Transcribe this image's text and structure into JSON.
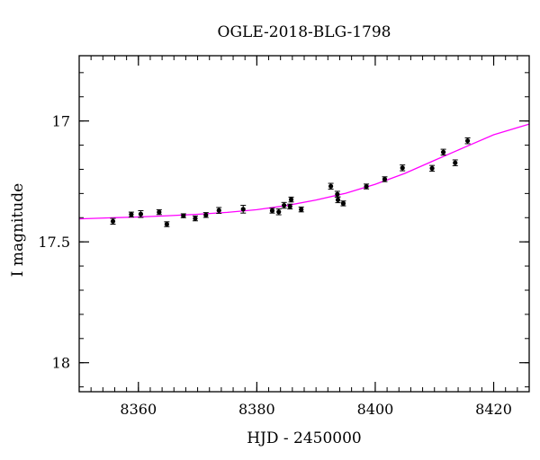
{
  "chart_data": {
    "type": "scatter",
    "title": "OGLE-2018-BLG-1798",
    "xlabel": "HJD - 2450000",
    "ylabel": "I magnitude",
    "xlim": [
      8350,
      8426
    ],
    "ylim": [
      18.12,
      16.73
    ],
    "y_inverted": true,
    "x_major_ticks": [
      8360,
      8380,
      8400,
      8420
    ],
    "x_minor_step": 2,
    "y_major_ticks": [
      17,
      17.5,
      18
    ],
    "y_minor_step": 0.1,
    "x_tick_labels": [
      "8360",
      "8380",
      "8400",
      "8420"
    ],
    "y_tick_labels": [
      "17",
      "17.5",
      "18"
    ],
    "grid": false,
    "colors": {
      "points": "#000000",
      "model": "#ff00ff",
      "axes": "#000000"
    },
    "series": [
      {
        "type": "scatter_errorbar",
        "points": [
          {
            "x": 8355.7,
            "y": 17.415,
            "err": 0.012
          },
          {
            "x": 8358.8,
            "y": 17.387,
            "err": 0.01
          },
          {
            "x": 8360.4,
            "y": 17.385,
            "err": 0.014
          },
          {
            "x": 8363.5,
            "y": 17.377,
            "err": 0.01
          },
          {
            "x": 8364.8,
            "y": 17.427,
            "err": 0.01
          },
          {
            "x": 8367.6,
            "y": 17.392,
            "err": 0.008
          },
          {
            "x": 8369.6,
            "y": 17.403,
            "err": 0.01
          },
          {
            "x": 8371.4,
            "y": 17.389,
            "err": 0.01
          },
          {
            "x": 8373.6,
            "y": 17.37,
            "err": 0.012
          },
          {
            "x": 8377.7,
            "y": 17.365,
            "err": 0.016
          },
          {
            "x": 8382.6,
            "y": 17.371,
            "err": 0.01
          },
          {
            "x": 8383.7,
            "y": 17.376,
            "err": 0.012
          },
          {
            "x": 8384.6,
            "y": 17.349,
            "err": 0.012
          },
          {
            "x": 8385.6,
            "y": 17.354,
            "err": 0.01
          },
          {
            "x": 8385.8,
            "y": 17.325,
            "err": 0.01
          },
          {
            "x": 8387.5,
            "y": 17.366,
            "err": 0.01
          },
          {
            "x": 8392.5,
            "y": 17.27,
            "err": 0.012
          },
          {
            "x": 8393.6,
            "y": 17.303,
            "err": 0.012
          },
          {
            "x": 8393.7,
            "y": 17.326,
            "err": 0.012
          },
          {
            "x": 8394.6,
            "y": 17.341,
            "err": 0.01
          },
          {
            "x": 8398.5,
            "y": 17.271,
            "err": 0.01
          },
          {
            "x": 8401.6,
            "y": 17.241,
            "err": 0.01
          },
          {
            "x": 8404.6,
            "y": 17.194,
            "err": 0.012
          },
          {
            "x": 8409.6,
            "y": 17.196,
            "err": 0.012
          },
          {
            "x": 8411.5,
            "y": 17.129,
            "err": 0.012
          },
          {
            "x": 8413.5,
            "y": 17.173,
            "err": 0.012
          },
          {
            "x": 8415.6,
            "y": 17.082,
            "err": 0.012
          }
        ]
      },
      {
        "type": "line",
        "x": [
          8350,
          8355,
          8360,
          8365,
          8370,
          8375,
          8380,
          8385,
          8390,
          8395,
          8400,
          8405,
          8410,
          8415,
          8420,
          8426
        ],
        "y": [
          17.405,
          17.401,
          17.397,
          17.392,
          17.386,
          17.378,
          17.367,
          17.35,
          17.327,
          17.299,
          17.262,
          17.217,
          17.163,
          17.11,
          17.057,
          17.013
        ]
      }
    ]
  }
}
